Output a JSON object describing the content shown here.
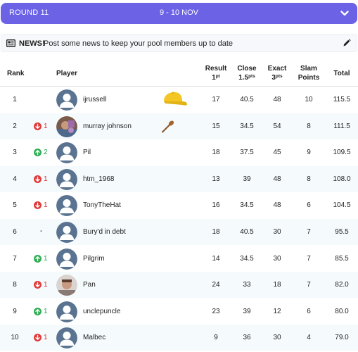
{
  "round": {
    "label": "ROUND 11",
    "dates": "9 - 10 NOV"
  },
  "news": {
    "title": "NEWS!",
    "text": "Post some news to keep your pool members up to date"
  },
  "columns": {
    "rank": "Rank",
    "player": "Player",
    "result": "Result",
    "result_sub": "1",
    "result_sup": "pt",
    "close": "Close",
    "close_sub": "1.5",
    "close_sup": "pts",
    "exact": "Exact",
    "exact_sub": "3",
    "exact_sup": "pts",
    "slam": "Slam",
    "slam_sub": "Points",
    "total": "Total"
  },
  "colors": {
    "accent": "#6b62e6",
    "up": "#2fae55",
    "down": "#e03a3a",
    "row_alt": "#f5fafc"
  },
  "rows": [
    {
      "rank": "1",
      "change": "",
      "direction": "none",
      "player": "ijrussell",
      "avatar": "default",
      "badge": "cap-icon",
      "result": "17",
      "close": "40.5",
      "exact": "48",
      "slam": "10",
      "total": "115.5"
    },
    {
      "rank": "2",
      "change": "1",
      "direction": "down",
      "player": "murray johnson",
      "avatar": "photo",
      "badge": "wooden-spoon-icon",
      "result": "15",
      "close": "34.5",
      "exact": "54",
      "slam": "8",
      "total": "111.5"
    },
    {
      "rank": "3",
      "change": "2",
      "direction": "up",
      "player": "Pil",
      "avatar": "default",
      "badge": "",
      "result": "18",
      "close": "37.5",
      "exact": "45",
      "slam": "9",
      "total": "109.5"
    },
    {
      "rank": "4",
      "change": "1",
      "direction": "down",
      "player": "htm_1968",
      "avatar": "default",
      "badge": "",
      "result": "13",
      "close": "39",
      "exact": "48",
      "slam": "8",
      "total": "108.0"
    },
    {
      "rank": "5",
      "change": "1",
      "direction": "down",
      "player": "TonyTheHat",
      "avatar": "default",
      "badge": "",
      "result": "16",
      "close": "34.5",
      "exact": "48",
      "slam": "6",
      "total": "104.5"
    },
    {
      "rank": "6",
      "change": "-",
      "direction": "same",
      "player": "Bury'd in debt",
      "avatar": "default",
      "badge": "",
      "result": "18",
      "close": "40.5",
      "exact": "30",
      "slam": "7",
      "total": "95.5"
    },
    {
      "rank": "7",
      "change": "1",
      "direction": "up",
      "player": "Pilgrim",
      "avatar": "default",
      "badge": "",
      "result": "14",
      "close": "34.5",
      "exact": "30",
      "slam": "7",
      "total": "85.5"
    },
    {
      "rank": "8",
      "change": "1",
      "direction": "down",
      "player": "Pan",
      "avatar": "photo",
      "badge": "",
      "result": "24",
      "close": "33",
      "exact": "18",
      "slam": "7",
      "total": "82.0"
    },
    {
      "rank": "9",
      "change": "1",
      "direction": "up",
      "player": "unclepuncle",
      "avatar": "default",
      "badge": "",
      "result": "23",
      "close": "39",
      "exact": "12",
      "slam": "6",
      "total": "80.0"
    },
    {
      "rank": "10",
      "change": "1",
      "direction": "down",
      "player": "Malbec",
      "avatar": "default",
      "badge": "",
      "result": "9",
      "close": "36",
      "exact": "30",
      "slam": "4",
      "total": "79.0"
    }
  ]
}
